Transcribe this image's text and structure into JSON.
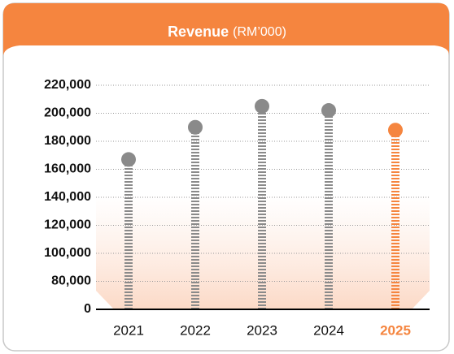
{
  "chart_data": {
    "type": "lollipop",
    "title": "Revenue",
    "unit": "(RM’000)",
    "categories": [
      "2021",
      "2022",
      "2023",
      "2024",
      "2025"
    ],
    "values": [
      167000,
      190000,
      205000,
      202000,
      188000
    ],
    "color": "#8a8a8a",
    "highlight": 4,
    "highlight_color": "#f5853f",
    "ylim": [
      0,
      220000
    ],
    "yticks": [
      0,
      {
        "value": 80000,
        "label": "80,000"
      },
      {
        "value": 100000,
        "label": "100,000"
      },
      {
        "value": 120000,
        "label": "120,000"
      },
      {
        "value": 140000,
        "label": "140,000"
      },
      {
        "value": 160000,
        "label": "160,000"
      },
      {
        "value": 180000,
        "label": "180,000"
      },
      {
        "value": 200000,
        "label": "200,000"
      },
      {
        "value": 220000,
        "label": "220,000"
      }
    ],
    "grid": true
  }
}
